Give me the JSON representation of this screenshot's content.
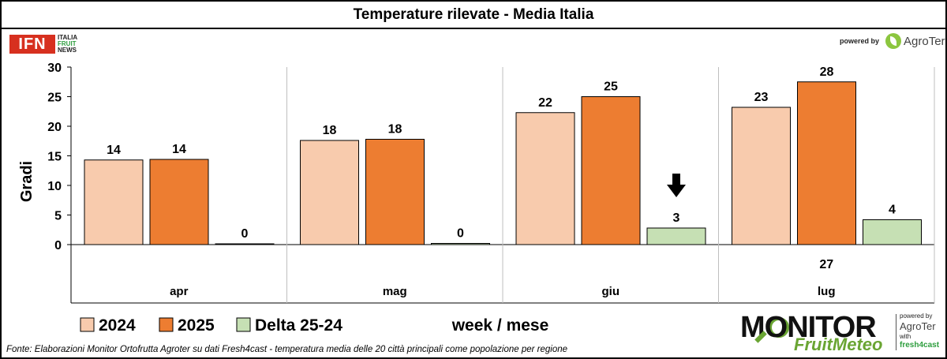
{
  "header": {
    "title": "Temperature rilevate - Media Italia"
  },
  "logos": {
    "ifn": {
      "mark": "IFN",
      "line1": "ITALIA",
      "line2": "FRUIT",
      "line3": "NEWS"
    },
    "agroter_top": {
      "powered_by": "powered by",
      "brand": "AgroTer"
    },
    "monitor": {
      "word": "MONITOR",
      "sub": "FruitMeteo",
      "powered_by": "powered by",
      "brand": "AgroTer",
      "with": "with",
      "partner": "fresh4cast"
    }
  },
  "source_note": "Fonte: Elaborazioni Monitor Ortofrutta Agroter su dati Fresh4cast - temperatura media delle 20 città principali come popolazione per regione",
  "colors": {
    "c2024": "#f8cbad",
    "c2025": "#ed7d31",
    "delta": "#c6e0b4",
    "axis": "#000000",
    "grid": "#bfbfbf"
  },
  "chart_data": {
    "type": "bar",
    "ylabel": "Gradi",
    "xlabel": "week / mese",
    "ylim": [
      0,
      30
    ],
    "yticks": [
      "0",
      "5",
      "10",
      "15",
      "20",
      "25",
      "30"
    ],
    "categories": [
      "apr",
      "mag",
      "giu",
      "lug"
    ],
    "week_labels": [
      "",
      "",
      "",
      "27"
    ],
    "series": [
      {
        "name": "2024",
        "values": [
          14.3,
          17.6,
          22.3,
          23.2
        ],
        "labels": [
          "14",
          "18",
          "22",
          "23"
        ]
      },
      {
        "name": "2025",
        "values": [
          14.4,
          17.8,
          25.0,
          27.5
        ],
        "labels": [
          "14",
          "18",
          "25",
          "28"
        ]
      },
      {
        "name": "Delta 25-24",
        "values": [
          0.1,
          0.2,
          2.8,
          4.2
        ],
        "labels": [
          "0",
          "0",
          "3",
          "4"
        ]
      }
    ],
    "annotations": [
      {
        "category": "giu",
        "type": "down-arrow"
      }
    ],
    "legend_position": "bottom-left",
    "grid": false
  }
}
